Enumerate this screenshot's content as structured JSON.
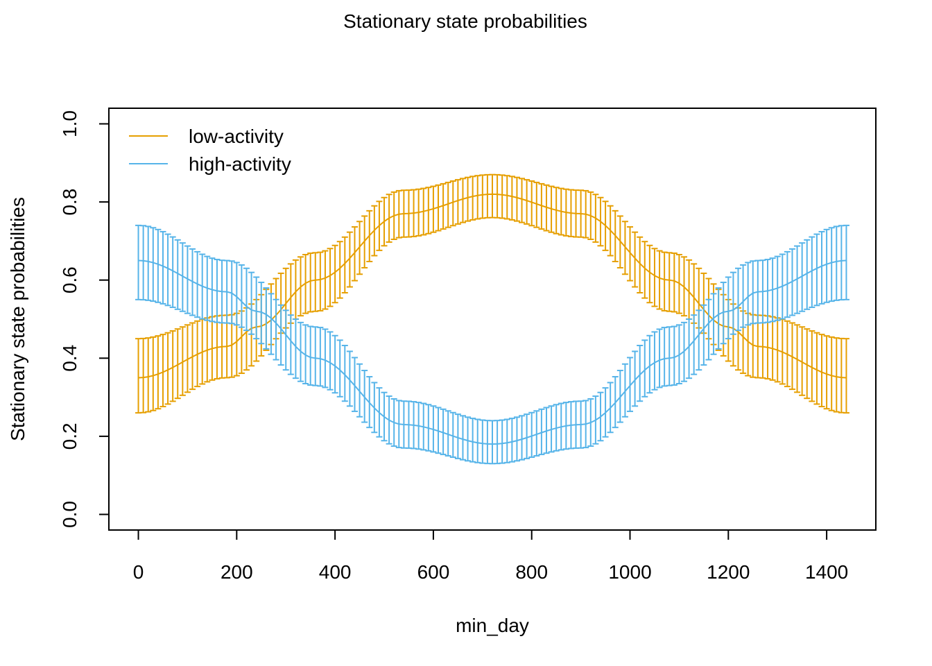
{
  "chart_data": {
    "type": "line",
    "title": "Stationary state probabilities",
    "xlabel": "min_day",
    "ylabel": "Stationary state probabilities",
    "xlim": [
      -60,
      1500
    ],
    "ylim": [
      -0.04,
      1.04
    ],
    "x_ticks": [
      0,
      200,
      400,
      600,
      800,
      1000,
      1200,
      1400
    ],
    "y_ticks": [
      0.0,
      0.2,
      0.4,
      0.6,
      0.8,
      1.0
    ],
    "x_tick_labels": [
      "0",
      "200",
      "400",
      "600",
      "800",
      "1000",
      "1200",
      "1400"
    ],
    "y_tick_labels": [
      "0.0",
      "0.2",
      "0.4",
      "0.6",
      "0.8",
      "1.0"
    ],
    "grid": false,
    "legend_position": "top-left",
    "error_bars": true,
    "x_range": [
      0,
      1440
    ],
    "x_step": 10,
    "series": [
      {
        "name": "low-activity",
        "color": "#E69F00",
        "curve_note": "cosine with period 1440",
        "mean_points": [
          [
            0,
            0.35
          ],
          [
            180,
            0.43
          ],
          [
            240,
            0.48
          ],
          [
            360,
            0.6
          ],
          [
            540,
            0.77
          ],
          [
            720,
            0.82
          ],
          [
            900,
            0.77
          ],
          [
            1080,
            0.6
          ],
          [
            1200,
            0.48
          ],
          [
            1260,
            0.43
          ],
          [
            1440,
            0.35
          ]
        ],
        "lower_points": [
          [
            0,
            0.26
          ],
          [
            180,
            0.35
          ],
          [
            360,
            0.52
          ],
          [
            540,
            0.71
          ],
          [
            720,
            0.76
          ],
          [
            900,
            0.71
          ],
          [
            1080,
            0.52
          ],
          [
            1260,
            0.35
          ],
          [
            1440,
            0.26
          ]
        ],
        "upper_points": [
          [
            0,
            0.45
          ],
          [
            180,
            0.51
          ],
          [
            360,
            0.67
          ],
          [
            540,
            0.83
          ],
          [
            720,
            0.87
          ],
          [
            900,
            0.83
          ],
          [
            1080,
            0.67
          ],
          [
            1260,
            0.51
          ],
          [
            1440,
            0.45
          ]
        ]
      },
      {
        "name": "high-activity",
        "color": "#56B4E9",
        "curve_note": "cosine with period 1440",
        "mean_points": [
          [
            0,
            0.65
          ],
          [
            180,
            0.57
          ],
          [
            240,
            0.52
          ],
          [
            360,
            0.4
          ],
          [
            540,
            0.23
          ],
          [
            720,
            0.18
          ],
          [
            900,
            0.23
          ],
          [
            1080,
            0.4
          ],
          [
            1200,
            0.52
          ],
          [
            1260,
            0.57
          ],
          [
            1440,
            0.65
          ]
        ],
        "lower_points": [
          [
            0,
            0.55
          ],
          [
            180,
            0.49
          ],
          [
            360,
            0.33
          ],
          [
            540,
            0.17
          ],
          [
            720,
            0.13
          ],
          [
            900,
            0.17
          ],
          [
            1080,
            0.33
          ],
          [
            1260,
            0.49
          ],
          [
            1440,
            0.55
          ]
        ],
        "upper_points": [
          [
            0,
            0.74
          ],
          [
            180,
            0.65
          ],
          [
            360,
            0.48
          ],
          [
            540,
            0.29
          ],
          [
            720,
            0.24
          ],
          [
            900,
            0.29
          ],
          [
            1080,
            0.48
          ],
          [
            1260,
            0.65
          ],
          [
            1440,
            0.74
          ]
        ]
      }
    ]
  }
}
